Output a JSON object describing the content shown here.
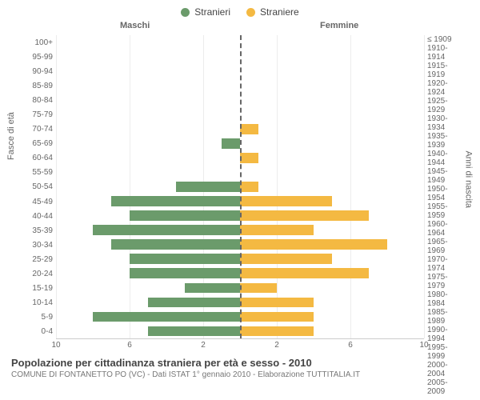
{
  "chart": {
    "type": "population-pyramid",
    "legend": [
      {
        "label": "Stranieri",
        "color": "#6b9b6b"
      },
      {
        "label": "Straniere",
        "color": "#f4b942"
      }
    ],
    "header_left": "Maschi",
    "header_right": "Femmine",
    "y_axis_left_label": "Fasce di età",
    "y_axis_right_label": "Anni di nascita",
    "x_max": 10,
    "x_ticks": [
      10,
      6,
      2,
      2,
      6,
      10
    ],
    "bar_color_left": "#6b9b6b",
    "bar_color_right": "#f4b942",
    "centerline_color": "#666666",
    "grid_color": "#ececec",
    "background_color": "#ffffff",
    "rows": [
      {
        "age": "100+",
        "birth": "≤ 1909",
        "m": 0,
        "f": 0
      },
      {
        "age": "95-99",
        "birth": "1910-1914",
        "m": 0,
        "f": 0
      },
      {
        "age": "90-94",
        "birth": "1915-1919",
        "m": 0,
        "f": 0
      },
      {
        "age": "85-89",
        "birth": "1920-1924",
        "m": 0,
        "f": 0
      },
      {
        "age": "80-84",
        "birth": "1925-1929",
        "m": 0,
        "f": 0
      },
      {
        "age": "75-79",
        "birth": "1930-1934",
        "m": 0,
        "f": 0
      },
      {
        "age": "70-74",
        "birth": "1935-1939",
        "m": 0,
        "f": 1
      },
      {
        "age": "65-69",
        "birth": "1940-1944",
        "m": 1,
        "f": 0
      },
      {
        "age": "60-64",
        "birth": "1945-1949",
        "m": 0,
        "f": 1
      },
      {
        "age": "55-59",
        "birth": "1950-1954",
        "m": 0,
        "f": 0
      },
      {
        "age": "50-54",
        "birth": "1955-1959",
        "m": 3.5,
        "f": 1
      },
      {
        "age": "45-49",
        "birth": "1960-1964",
        "m": 7,
        "f": 5
      },
      {
        "age": "40-44",
        "birth": "1965-1969",
        "m": 6,
        "f": 7
      },
      {
        "age": "35-39",
        "birth": "1970-1974",
        "m": 8,
        "f": 4
      },
      {
        "age": "30-34",
        "birth": "1975-1979",
        "m": 7,
        "f": 8
      },
      {
        "age": "25-29",
        "birth": "1980-1984",
        "m": 6,
        "f": 5
      },
      {
        "age": "20-24",
        "birth": "1985-1989",
        "m": 6,
        "f": 7
      },
      {
        "age": "15-19",
        "birth": "1990-1994",
        "m": 3,
        "f": 2
      },
      {
        "age": "10-14",
        "birth": "1995-1999",
        "m": 5,
        "f": 4
      },
      {
        "age": "5-9",
        "birth": "2000-2004",
        "m": 8,
        "f": 4
      },
      {
        "age": "0-4",
        "birth": "2005-2009",
        "m": 5,
        "f": 4
      }
    ],
    "title": "Popolazione per cittadinanza straniera per età e sesso - 2010",
    "subtitle": "COMUNE DI FONTANETTO PO (VC) - Dati ISTAT 1° gennaio 2010 - Elaborazione TUTTITALIA.IT"
  }
}
